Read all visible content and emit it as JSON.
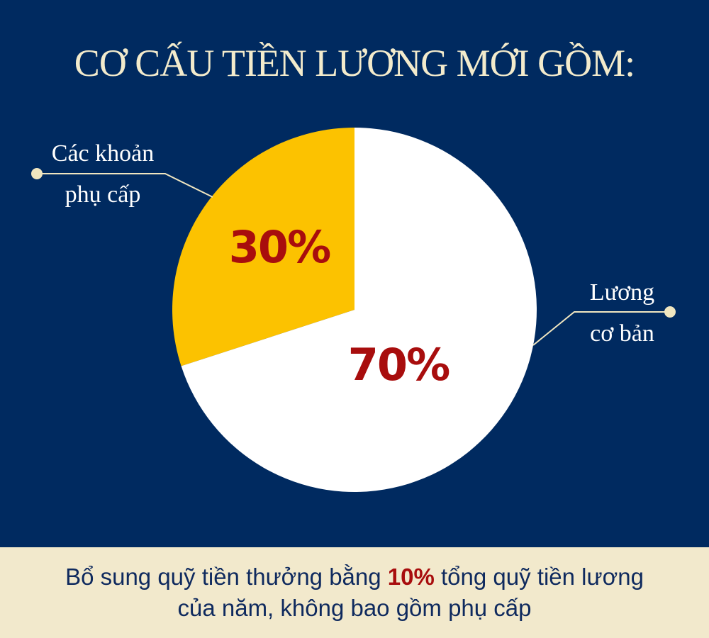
{
  "title": "CƠ CẤU TIỀN LƯƠNG MỚI GỒM:",
  "chart_data": {
    "type": "pie",
    "title": "CƠ CẤU TIỀN LƯƠNG MỚI GỒM:",
    "slices": [
      {
        "label_line1": "Các khoản",
        "label_line2": "phụ cấp",
        "value": 30,
        "display": "30%",
        "color": "#fcc200"
      },
      {
        "label_line1": "Lương",
        "label_line2": "cơ bản",
        "value": 70,
        "display": "70%",
        "color": "#ffffff"
      }
    ],
    "value_label_color": "#a80d0d"
  },
  "colors": {
    "background": "#002a60",
    "footer_bg": "#f2e9cc",
    "title": "#f3ebcc",
    "leader": "#f0e6c0"
  },
  "footer": {
    "part1": "Bổ sung quỹ tiền thưởng bằng ",
    "highlight": "10%",
    "part2": " tổng quỹ tiền lương",
    "line2": "của năm, không bao gồm phụ cấp"
  }
}
